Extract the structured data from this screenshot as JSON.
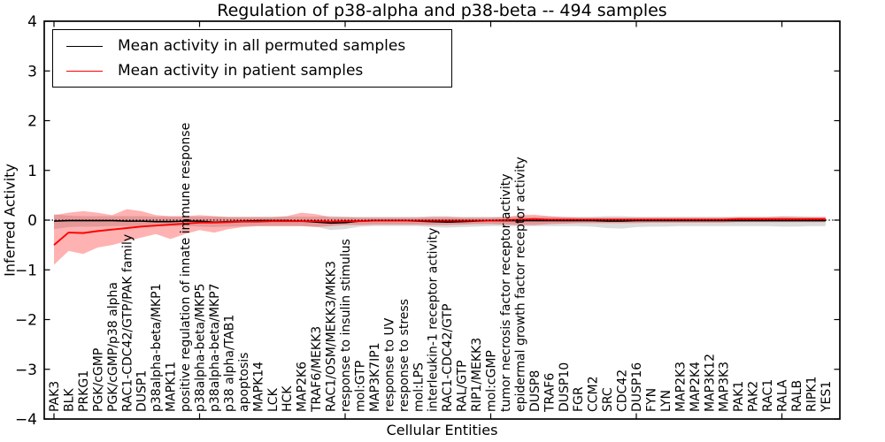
{
  "figure": {
    "title": "Regulation of p38-alpha and p38-beta -- 494 samples",
    "xlabel": "Cellular Entities",
    "ylabel": "Inferred Activity"
  },
  "legend": {
    "position": "upper left",
    "items": [
      {
        "label": "Mean activity in all permuted samples",
        "color": "#000000"
      },
      {
        "label": "Mean activity in patient samples",
        "color": "#ff0000"
      }
    ]
  },
  "colors": {
    "permuted_line": "#000000",
    "patient_line": "#ff0000",
    "permuted_band": "rgba(0,0,0,0.14)",
    "patient_band": "rgba(255,0,0,0.30)",
    "zero_line": "#000000",
    "frame": "#000000",
    "background": "#ffffff"
  },
  "chart_data": {
    "type": "line",
    "title": "Regulation of p38-alpha and p38-beta -- 494 samples",
    "xlabel": "Cellular Entities",
    "ylabel": "Inferred Activity",
    "ylim": [
      -4,
      4
    ],
    "yticks": [
      4,
      3,
      2,
      1,
      0,
      -1,
      -2,
      -3,
      -4
    ],
    "x_major_tick_every": 10,
    "grid": false,
    "legend_position": "upper left",
    "zero_line": {
      "y": 0,
      "style": "dotted",
      "color": "#000000"
    },
    "categories": [
      "PAK3",
      "BLK",
      "PRKG1",
      "PGK/cGMP",
      "PGK/cGMP/p38 alpha",
      "RAC1-CDC42/GTP/PAK family",
      "DUSP1",
      "p38alpha-beta/MKP1",
      "MAPK11",
      "positive regulation of innate immune response",
      "p38alpha-beta/MKP5",
      "p38alpha-beta/MKP7",
      "p38 alpha/TAB1",
      "apoptosis",
      "MAPK14",
      "LCK",
      "HCK",
      "MAP2K6",
      "TRAF6/MEKK3",
      "RAC1/OSM/MEKK3/MKK3",
      "response to insulin stimulus",
      "mol:GTP",
      "MAP3K7IP1",
      "response to UV",
      "response to stress",
      "mol:LPS",
      "interleukin-1 receptor activity",
      "RAC1-CDC42/GTP",
      "RAL/GTP",
      "RIP1/MEKK3",
      "mol:cGMP",
      "tumor necrosis factor receptor activity",
      "epidermal growth factor receptor activity",
      "DUSP8",
      "TRAF6",
      "DUSP10",
      "FGR",
      "CCM2",
      "SRC",
      "CDC42",
      "DUSP16",
      "FYN",
      "LYN",
      "MAP2K3",
      "MAP2K4",
      "MAP3K12",
      "MAP3K3",
      "PAK1",
      "PAK2",
      "RAC1",
      "RALA",
      "RALB",
      "RIPK1",
      "YES1"
    ],
    "series": [
      {
        "name": "Mean activity in all permuted samples",
        "color": "#000000",
        "band_fill": "rgba(0,0,0,0.14)",
        "values": [
          -0.02,
          -0.01,
          -0.01,
          -0.01,
          -0.01,
          -0.02,
          -0.02,
          -0.03,
          -0.03,
          -0.02,
          -0.02,
          -0.04,
          -0.03,
          -0.02,
          -0.01,
          -0.01,
          -0.01,
          -0.02,
          -0.04,
          -0.06,
          -0.05,
          -0.02,
          -0.01,
          -0.01,
          -0.01,
          -0.02,
          -0.03,
          -0.04,
          -0.03,
          -0.02,
          -0.01,
          -0.01,
          -0.01,
          -0.01,
          -0.01,
          -0.01,
          -0.01,
          -0.01,
          -0.02,
          -0.02,
          -0.01,
          -0.01,
          -0.01,
          -0.01,
          -0.01,
          -0.01,
          -0.01,
          -0.01,
          -0.01,
          -0.01,
          -0.01,
          -0.01,
          -0.01,
          -0.01
        ],
        "band_upper": [
          0.12,
          0.09,
          0.08,
          0.08,
          0.08,
          0.08,
          0.08,
          0.07,
          0.07,
          0.07,
          0.07,
          0.07,
          0.07,
          0.07,
          0.07,
          0.07,
          0.07,
          0.07,
          0.07,
          0.08,
          0.07,
          0.07,
          0.07,
          0.07,
          0.07,
          0.07,
          0.08,
          0.08,
          0.07,
          0.07,
          0.07,
          0.07,
          0.07,
          0.07,
          0.07,
          0.07,
          0.07,
          0.07,
          0.08,
          0.08,
          0.07,
          0.07,
          0.07,
          0.07,
          0.07,
          0.07,
          0.07,
          0.07,
          0.07,
          0.07,
          0.08,
          0.08,
          0.07,
          0.07
        ],
        "band_lower": [
          -0.18,
          -0.14,
          -0.13,
          -0.13,
          -0.12,
          -0.12,
          -0.13,
          -0.12,
          -0.12,
          -0.12,
          -0.13,
          -0.14,
          -0.13,
          -0.12,
          -0.12,
          -0.12,
          -0.12,
          -0.12,
          -0.13,
          -0.2,
          -0.18,
          -0.13,
          -0.12,
          -0.12,
          -0.12,
          -0.12,
          -0.14,
          -0.15,
          -0.14,
          -0.13,
          -0.12,
          -0.12,
          -0.12,
          -0.12,
          -0.12,
          -0.12,
          -0.12,
          -0.13,
          -0.16,
          -0.17,
          -0.14,
          -0.13,
          -0.13,
          -0.12,
          -0.12,
          -0.12,
          -0.12,
          -0.12,
          -0.12,
          -0.12,
          -0.13,
          -0.13,
          -0.12,
          -0.12
        ]
      },
      {
        "name": "Mean activity in patient samples",
        "color": "#ff0000",
        "band_fill": "rgba(255,0,0,0.30)",
        "values": [
          -0.5,
          -0.25,
          -0.26,
          -0.22,
          -0.19,
          -0.16,
          -0.13,
          -0.11,
          -0.09,
          -0.07,
          -0.05,
          -0.05,
          -0.04,
          -0.03,
          -0.03,
          -0.02,
          -0.02,
          -0.02,
          -0.02,
          -0.03,
          -0.02,
          -0.02,
          -0.01,
          -0.01,
          -0.01,
          -0.01,
          -0.01,
          -0.01,
          -0.01,
          -0.01,
          -0.01,
          0.0,
          0.01,
          0.02,
          0.01,
          0.01,
          0.01,
          0.01,
          0.01,
          0.01,
          0.01,
          0.01,
          0.01,
          0.01,
          0.01,
          0.01,
          0.01,
          0.02,
          0.02,
          0.02,
          0.02,
          0.02,
          0.02,
          0.02
        ],
        "band_upper": [
          0.1,
          0.15,
          0.18,
          0.15,
          0.1,
          0.22,
          0.18,
          0.1,
          0.08,
          0.08,
          0.1,
          0.08,
          0.06,
          0.06,
          0.06,
          0.06,
          0.08,
          0.15,
          0.12,
          0.06,
          0.06,
          0.05,
          0.05,
          0.05,
          0.05,
          0.05,
          0.06,
          0.06,
          0.05,
          0.05,
          0.05,
          0.06,
          0.1,
          0.11,
          0.08,
          0.06,
          0.05,
          0.05,
          0.05,
          0.05,
          0.05,
          0.05,
          0.05,
          0.05,
          0.05,
          0.05,
          0.05,
          0.06,
          0.06,
          0.06,
          0.07,
          0.06,
          0.06,
          0.06
        ],
        "band_lower": [
          -0.9,
          -0.62,
          -0.68,
          -0.55,
          -0.5,
          -0.42,
          -0.35,
          -0.28,
          -0.38,
          -0.28,
          -0.2,
          -0.25,
          -0.18,
          -0.14,
          -0.12,
          -0.12,
          -0.12,
          -0.12,
          -0.14,
          -0.12,
          -0.1,
          -0.1,
          -0.09,
          -0.09,
          -0.09,
          -0.09,
          -0.1,
          -0.1,
          -0.09,
          -0.08,
          -0.08,
          -0.09,
          -0.1,
          -0.1,
          -0.08,
          -0.07,
          -0.06,
          -0.06,
          -0.06,
          -0.06,
          -0.06,
          -0.05,
          -0.05,
          -0.05,
          -0.05,
          -0.05,
          -0.05,
          -0.04,
          -0.04,
          -0.04,
          -0.04,
          -0.04,
          -0.04,
          -0.04
        ]
      }
    ]
  }
}
